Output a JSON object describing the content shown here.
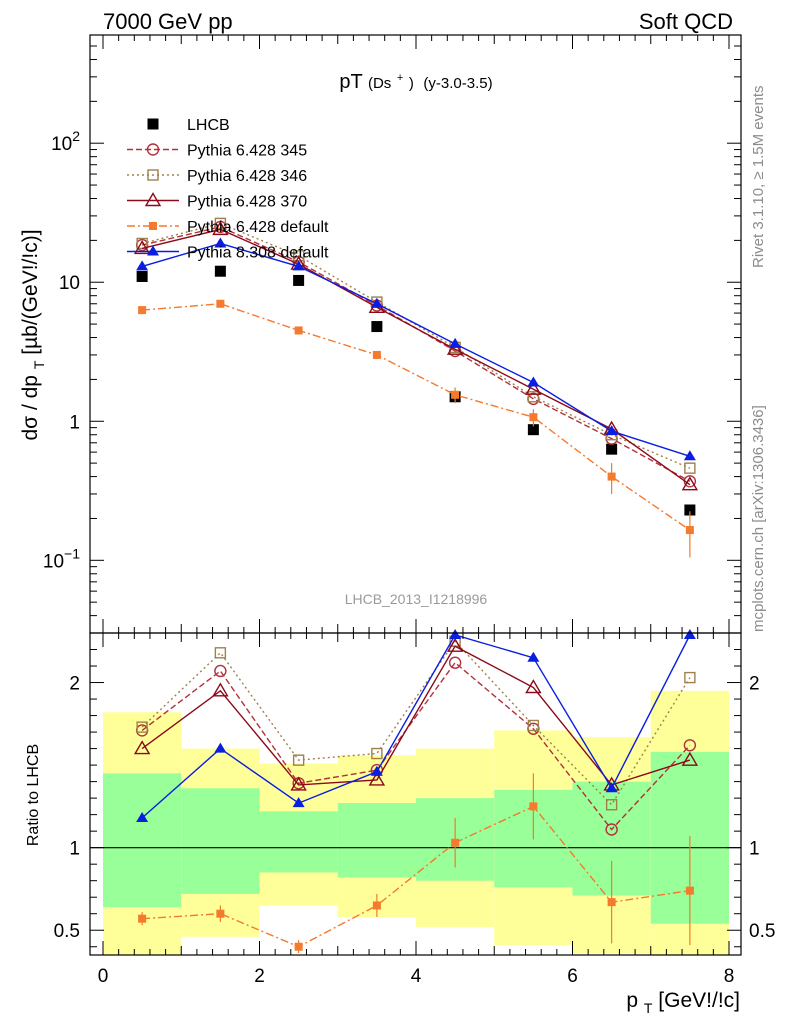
{
  "header": {
    "left": "7000 GeV pp",
    "right": "Soft QCD"
  },
  "side_text": {
    "rivet": "Rivet 3.1.10, ≥ 1.5M events",
    "source": "mcplots.cern.ch [arXiv:1306.3436]"
  },
  "colors": {
    "data": "#000000",
    "p345": "#b2313b",
    "p346": "#a0804a",
    "p370": "#8b0a1a",
    "pdef": "#f47a2e",
    "p8": "#0a1ee0",
    "band_yellow": "#ffff99",
    "band_green": "#99ff99"
  },
  "chart_data": [
    {
      "type": "line",
      "title": "pT(Ds+) (y-3.0-3.5)",
      "title_main": "pT",
      "title_paren": "(Ds",
      "title_sup": "+",
      "title_close": ")",
      "title_range": "(y-3.0-3.5)",
      "ylabel": "dσ / dp",
      "ylabel_sub": "T",
      "ylabel_units": " [µb/(GeV!/!c)]",
      "watermark": "LHCB_2013_I1218996",
      "yscale": "log",
      "xlim": [
        0,
        8
      ],
      "ylim": [
        0.03,
        600
      ],
      "y_ticks": [
        {
          "v": 0.1,
          "base": "10",
          "exp": "−1"
        },
        {
          "v": 1,
          "base": "1",
          "exp": ""
        },
        {
          "v": 10,
          "base": "10",
          "exp": ""
        },
        {
          "v": 100,
          "base": "10",
          "exp": "2"
        }
      ],
      "x": [
        0.5,
        1.5,
        2.5,
        3.5,
        4.5,
        5.5,
        6.5,
        7.5
      ],
      "series": [
        {
          "name": "LHCB",
          "key": "data",
          "marker": "square-filled",
          "values": [
            11.0,
            12.0,
            10.3,
            4.8,
            1.5,
            0.87,
            0.63,
            0.23
          ]
        },
        {
          "name": "Pythia 6.428 345",
          "key": "p345",
          "marker": "circle-open",
          "dash": "6,3",
          "values": [
            18.5,
            25.0,
            14.0,
            6.8,
            3.2,
            1.45,
            0.75,
            0.37
          ]
        },
        {
          "name": "Pythia 6.428 346",
          "key": "p346",
          "marker": "square-open",
          "dash": "2,3",
          "values": [
            19.0,
            26.5,
            15.5,
            7.2,
            3.4,
            1.5,
            0.8,
            0.46
          ]
        },
        {
          "name": "Pythia 6.428 370",
          "key": "p370",
          "marker": "triangle-open",
          "dash": "",
          "values": [
            17.5,
            24.0,
            13.5,
            6.6,
            3.3,
            1.7,
            0.88,
            0.35
          ]
        },
        {
          "name": "Pythia 6.428 default",
          "key": "pdef",
          "marker": "square-small",
          "dash": "8,3,2,3",
          "values": [
            6.3,
            7.0,
            4.5,
            3.0,
            1.55,
            1.07,
            0.4,
            0.165
          ],
          "errors": [
            0.2,
            0.3,
            0.2,
            0.2,
            0.2,
            0.15,
            0.1,
            0.06
          ]
        },
        {
          "name": "Pythia 8.308 default",
          "key": "p8",
          "marker": "triangle-filled",
          "dash": "",
          "values": [
            13.0,
            19.0,
            13.0,
            7.0,
            3.6,
            1.9,
            0.85,
            0.56
          ]
        }
      ]
    },
    {
      "type": "line",
      "ylabel": "Ratio to LHCB",
      "xlabel": "p",
      "xlabel_sub": "T",
      "xlabel_units": " [GeV!/!c]",
      "xlim": [
        0,
        8
      ],
      "ylim": [
        0.35,
        2.3
      ],
      "x_ticks": [
        0,
        2,
        4,
        6,
        8
      ],
      "y_ticks": [
        0.5,
        1,
        2
      ],
      "bands": [
        {
          "x0": 0,
          "x1": 1,
          "yellow": [
            0.35,
            1.82
          ],
          "green": [
            0.64,
            1.45
          ]
        },
        {
          "x0": 1,
          "x1": 2,
          "yellow": [
            0.46,
            1.6
          ],
          "green": [
            0.72,
            1.36
          ]
        },
        {
          "x0": 2,
          "x1": 3,
          "yellow": [
            0.65,
            1.51
          ],
          "green": [
            0.85,
            1.22
          ]
        },
        {
          "x0": 3,
          "x1": 4,
          "yellow": [
            0.58,
            1.56
          ],
          "green": [
            0.82,
            1.27
          ]
        },
        {
          "x0": 4,
          "x1": 5,
          "yellow": [
            0.52,
            1.6
          ],
          "green": [
            0.8,
            1.3
          ]
        },
        {
          "x0": 5,
          "x1": 6,
          "yellow": [
            0.41,
            1.71
          ],
          "green": [
            0.76,
            1.35
          ]
        },
        {
          "x0": 6,
          "x1": 7,
          "yellow": [
            0.36,
            1.67
          ],
          "green": [
            0.71,
            1.4
          ]
        },
        {
          "x0": 7,
          "x1": 8,
          "yellow": [
            0.35,
            1.95
          ],
          "green": [
            0.54,
            1.58
          ]
        }
      ],
      "x": [
        0.5,
        1.5,
        2.5,
        3.5,
        4.5,
        5.5,
        6.5,
        7.5
      ],
      "series": [
        {
          "name": "Pythia 6.428 345",
          "key": "p345",
          "marker": "circle-open",
          "dash": "6,3",
          "values": [
            1.71,
            2.07,
            1.39,
            1.47,
            2.12,
            1.72,
            1.11,
            1.62
          ]
        },
        {
          "name": "Pythia 6.428 346",
          "key": "p346",
          "marker": "square-open",
          "dash": "2,3",
          "values": [
            1.73,
            2.18,
            1.53,
            1.57,
            2.25,
            1.74,
            1.26,
            2.03
          ]
        },
        {
          "name": "Pythia 6.428 370",
          "key": "p370",
          "marker": "triangle-open",
          "dash": "",
          "values": [
            1.6,
            1.95,
            1.38,
            1.41,
            2.22,
            1.97,
            1.38,
            1.53
          ]
        },
        {
          "name": "Pythia 6.428 default",
          "key": "pdef",
          "marker": "square-small",
          "dash": "8,3,2,3",
          "values": [
            0.57,
            0.6,
            0.4,
            0.65,
            1.03,
            1.25,
            0.67,
            0.74
          ],
          "errors": [
            0.04,
            0.05,
            0.04,
            0.07,
            0.15,
            0.2,
            0.25,
            0.33
          ]
        },
        {
          "name": "Pythia 8.308 default",
          "key": "p8",
          "marker": "triangle-filled",
          "dash": "",
          "values": [
            1.18,
            1.6,
            1.27,
            1.46,
            2.38,
            2.15,
            1.36,
            2.37
          ]
        }
      ]
    }
  ]
}
